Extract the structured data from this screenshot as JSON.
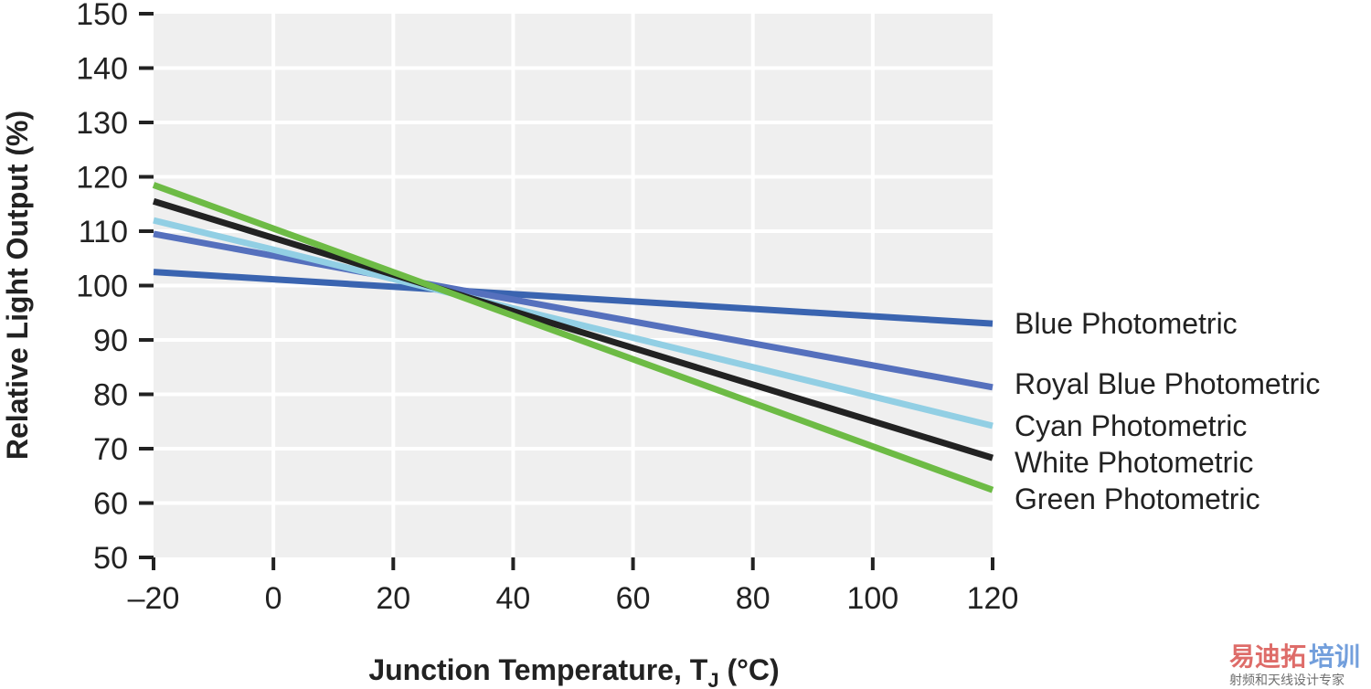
{
  "chart_data": {
    "type": "line",
    "title": "",
    "xlabel": "Junction Temperature, T",
    "xlabel_subscript": "J",
    "xlabel_unit": " (°C)",
    "ylabel": "Relative Light Output (%)",
    "xlim": [
      -20,
      120
    ],
    "ylim": [
      50,
      150
    ],
    "grid": true,
    "x_ticks": [
      -20,
      0,
      20,
      40,
      60,
      80,
      100,
      120
    ],
    "x_tick_labels": [
      "–20",
      "0",
      "20",
      "40",
      "60",
      "80",
      "100",
      "120"
    ],
    "y_ticks": [
      50,
      60,
      70,
      80,
      90,
      100,
      110,
      120,
      130,
      140,
      150
    ],
    "y_tick_labels": [
      "50",
      "60",
      "70",
      "80",
      "90",
      "100",
      "110",
      "120",
      "130",
      "140",
      "150"
    ],
    "legend_placement": "right-inline",
    "x": [
      -20,
      120
    ],
    "series": [
      {
        "name": "Blue Photometric",
        "color": "#3a64b0",
        "values": [
          102.5,
          93.0
        ]
      },
      {
        "name": "Royal Blue Photometric",
        "color": "#5570bd",
        "values": [
          109.5,
          81.3
        ]
      },
      {
        "name": "Cyan Photometric",
        "color": "#92cfe4",
        "values": [
          112.0,
          74.2
        ]
      },
      {
        "name": "White Photometric",
        "color": "#222222",
        "values": [
          115.5,
          68.3
        ]
      },
      {
        "name": "Green Photometric",
        "color": "#6dbb45",
        "values": [
          118.5,
          62.4
        ]
      }
    ],
    "legend_order": [
      "Blue Photometric",
      "Royal Blue Photometric",
      "Cyan Photometric",
      "White Photometric",
      "Green Photometric"
    ]
  },
  "watermark": {
    "brand_red": "易迪拓",
    "brand_blue": "培训",
    "tagline": "射频和天线设计专家",
    "red_color": "#d9534f",
    "blue_color": "#5b8fd6"
  },
  "style": {
    "plot_bg": "#efefef",
    "grid_color": "#ffffff",
    "axis_color": "#222222"
  }
}
